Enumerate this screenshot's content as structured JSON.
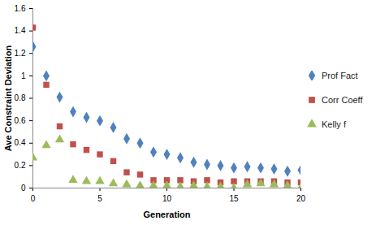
{
  "chart_data": {
    "type": "scatter",
    "x_label": "Generation",
    "y_label": "Ave Constraint Deviation",
    "x": [
      0,
      1,
      2,
      3,
      4,
      5,
      6,
      7,
      8,
      9,
      10,
      11,
      12,
      13,
      14,
      15,
      16,
      17,
      18,
      19,
      20
    ],
    "series": [
      {
        "name": "Prof Fact",
        "color": "#4f81bd",
        "marker": "diamond",
        "values": [
          1.26,
          1.0,
          0.81,
          0.68,
          0.63,
          0.6,
          0.54,
          0.44,
          0.4,
          0.32,
          0.3,
          0.27,
          0.23,
          0.21,
          0.2,
          0.18,
          0.19,
          0.18,
          0.17,
          0.15,
          0.16
        ]
      },
      {
        "name": "Corr Coeff",
        "color": "#c0504d",
        "marker": "square",
        "values": [
          1.43,
          0.92,
          0.55,
          0.39,
          0.34,
          0.3,
          0.24,
          0.14,
          0.12,
          0.07,
          0.07,
          0.07,
          0.06,
          0.07,
          0.05,
          0.06,
          0.06,
          0.06,
          0.06,
          0.05,
          0.05
        ]
      },
      {
        "name": "Kelly f",
        "color": "#9bbb59",
        "marker": "triangle",
        "values": [
          0.27,
          0.38,
          0.43,
          0.07,
          0.06,
          0.06,
          0.04,
          0.03,
          0.02,
          0.02,
          0.02,
          0.01,
          0.02,
          0.01,
          0.01,
          0.0,
          0.03,
          0.04,
          0.03,
          0.02,
          0.0
        ]
      }
    ],
    "xlim": [
      0,
      20
    ],
    "xticks": [
      0,
      5,
      10,
      15,
      20
    ],
    "ylim": [
      0,
      1.6
    ],
    "yticks": [
      0,
      0.2,
      0.4,
      0.6,
      0.8,
      1,
      1.2,
      1.4,
      1.6
    ],
    "grid": false,
    "legend": "right"
  }
}
